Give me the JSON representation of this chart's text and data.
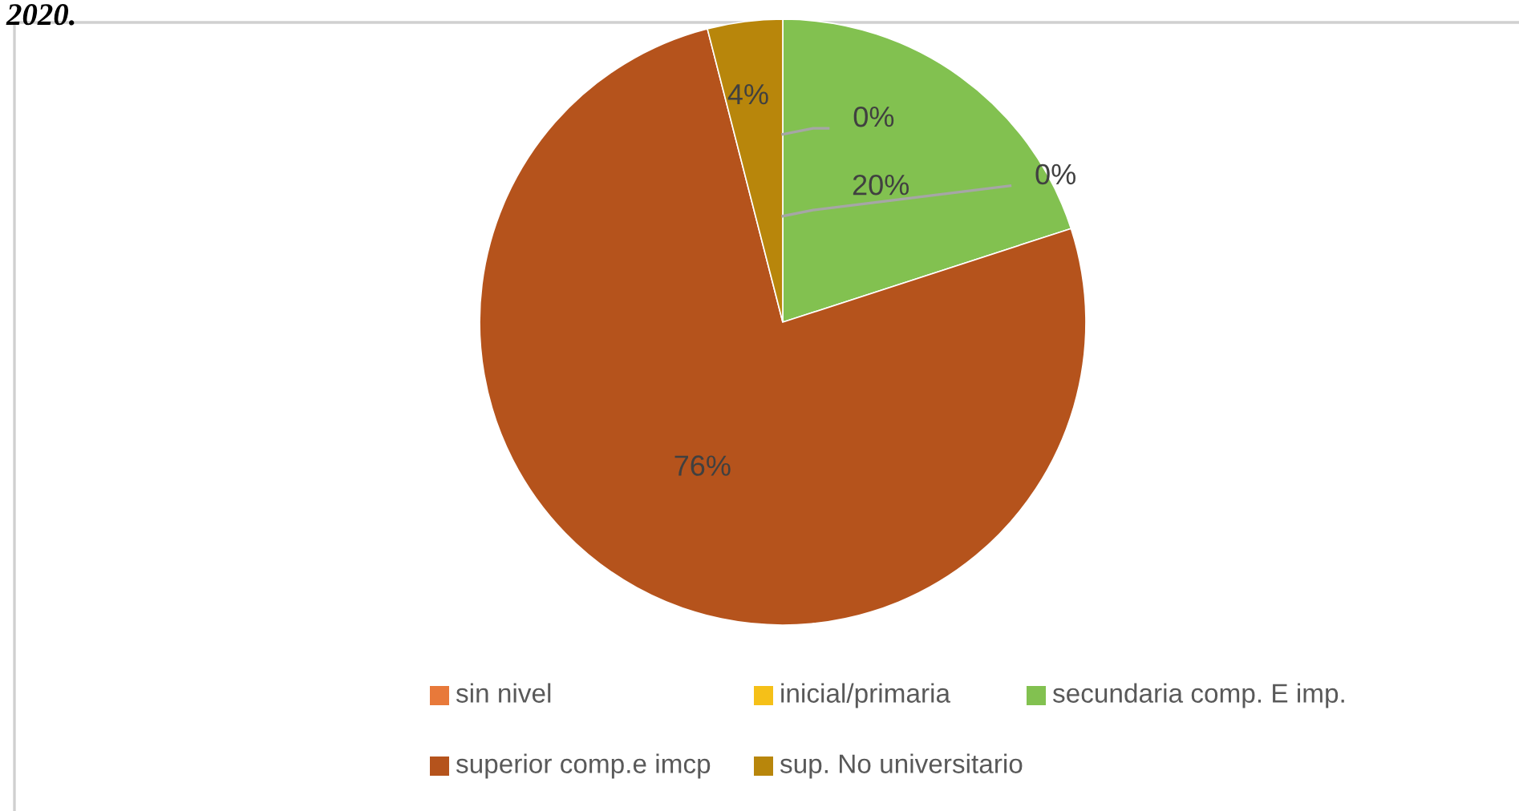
{
  "chart_data": {
    "type": "pie",
    "title": "2020.",
    "categories": [
      "sin nivel",
      "inicial/primaria",
      "secundaria comp. E imp.",
      "superior comp.e imcp",
      "sup. No universitario"
    ],
    "values": [
      0,
      0,
      20,
      76,
      4
    ],
    "value_labels": [
      "0%",
      "0%",
      "20%",
      "76%",
      "4%"
    ],
    "colors": [
      "#e8793a",
      "#f5c018",
      "#82c150",
      "#b5531c",
      "#b8860b"
    ],
    "legend": "bottom"
  }
}
